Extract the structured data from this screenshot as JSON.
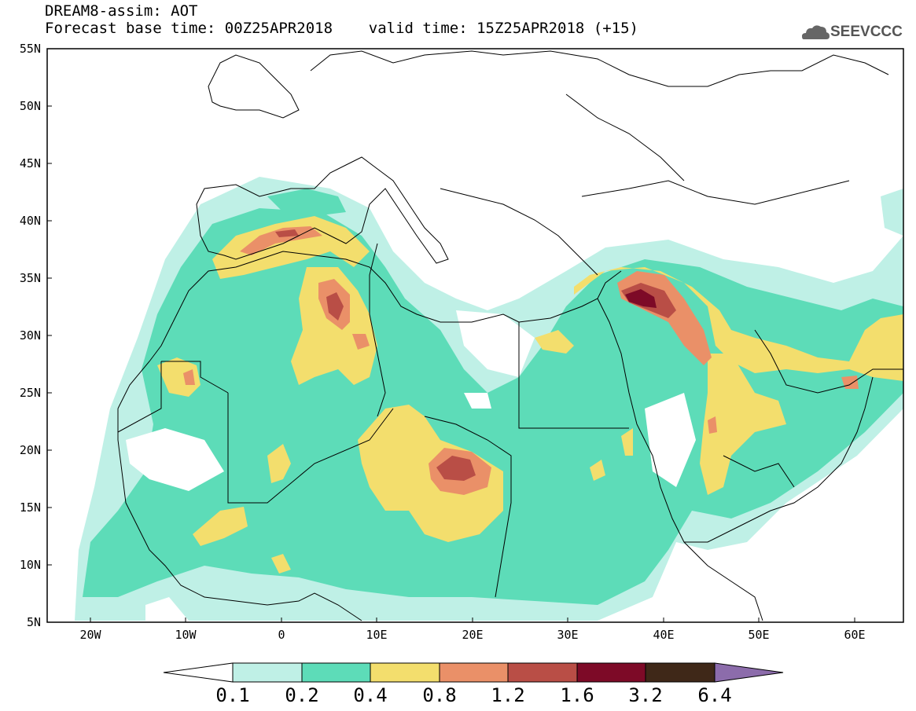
{
  "header": {
    "title_line1": "DREAM8-assim: AOT",
    "title_line2": "Forecast base time: 00Z25APR2018    valid time: 15Z25APR2018 (+15)",
    "logo_text": "SEEVCCC"
  },
  "axes": {
    "lat_labels": [
      "55N",
      "50N",
      "45N",
      "40N",
      "35N",
      "30N",
      "25N",
      "20N",
      "15N",
      "10N",
      "5N"
    ],
    "lon_labels": [
      "20W",
      "10W",
      "0",
      "10E",
      "20E",
      "30E",
      "40E",
      "50E",
      "60E"
    ]
  },
  "colorbar": {
    "labels": [
      "0.1",
      "0.2",
      "0.4",
      "0.8",
      "1.2",
      "1.6",
      "3.2",
      "6.4"
    ],
    "colors": [
      "#bff0e6",
      "#5ddcb8",
      "#f3de6d",
      "#ea9068",
      "#b94e46",
      "#7d0a27",
      "#3f2818",
      "#8c6cab"
    ]
  },
  "palette": {
    "aot_0_1": "#bff0e6",
    "aot_0_2": "#5ddcb8",
    "aot_0_4": "#f3de6d",
    "aot_0_8": "#ea9068",
    "aot_1_2": "#b94e46",
    "aot_1_6": "#7d0a27"
  }
}
